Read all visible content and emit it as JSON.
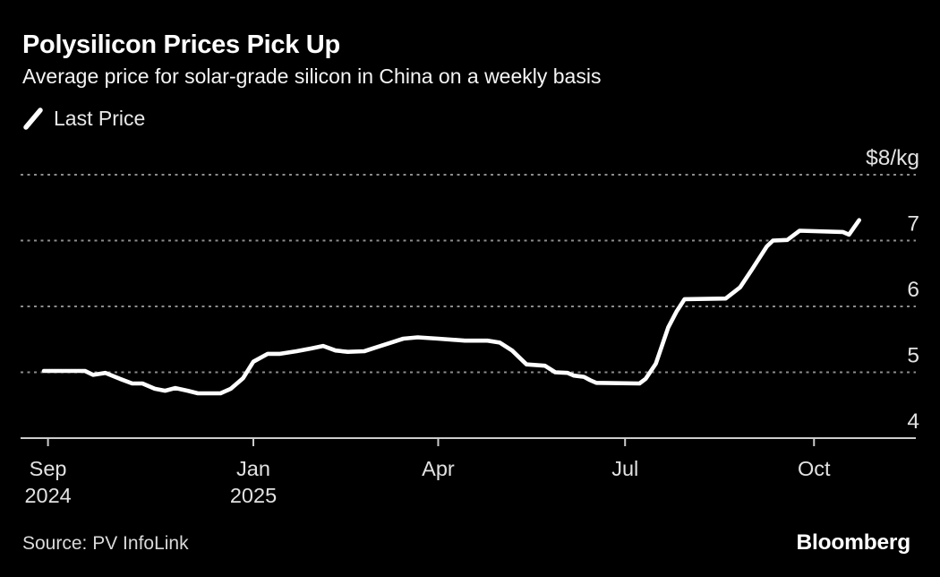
{
  "header": {
    "title": "Polysilicon Prices Pick Up",
    "subtitle": "Average price for solar-grade silicon in China on a weekly basis"
  },
  "legend": {
    "label": "Last Price"
  },
  "footer": {
    "source": "Source: PV InfoLink",
    "brand": "Bloomberg"
  },
  "colors": {
    "background": "#000000",
    "line": "#ffffff",
    "grid_dots": "#8c8c8c",
    "axis": "#cccccc",
    "labels": "#e2e2e2",
    "title": "#ffffff"
  },
  "chart_data": {
    "type": "line",
    "title": "Polysilicon Prices Pick Up",
    "subtitle": "Average price for solar-grade silicon in China on a weekly basis",
    "unit": "$/kg",
    "legend": [
      "Last Price"
    ],
    "legend_position": "top-left",
    "grid": "dotted-horizontal",
    "y_axis": {
      "range": [
        4,
        8
      ],
      "ticks": [
        {
          "value": 8,
          "label": "$8/kg"
        },
        {
          "value": 7,
          "label": "7"
        },
        {
          "value": 6,
          "label": "6"
        },
        {
          "value": 5,
          "label": "5"
        },
        {
          "value": 4,
          "label": "4"
        }
      ]
    },
    "x_axis": {
      "range": [
        "2024-09-15",
        "2025-10-30"
      ],
      "ticks": [
        {
          "date": "2024-09-23",
          "line1": "Sep",
          "line2": "2024"
        },
        {
          "date": "2025-01-01",
          "line1": "Jan",
          "line2": "2025"
        },
        {
          "date": "2025-04-01",
          "line1": "Apr",
          "line2": ""
        },
        {
          "date": "2025-07-01",
          "line1": "Jul",
          "line2": ""
        },
        {
          "date": "2025-10-01",
          "line1": "Oct",
          "line2": ""
        }
      ]
    },
    "series": [
      {
        "name": "Last Price",
        "points": [
          [
            "2024-09-21",
            5.02
          ],
          [
            "2024-10-11",
            5.02
          ],
          [
            "2024-10-15",
            4.96
          ],
          [
            "2024-10-21",
            4.99
          ],
          [
            "2024-10-28",
            4.9
          ],
          [
            "2024-11-03",
            4.83
          ],
          [
            "2024-11-08",
            4.83
          ],
          [
            "2024-11-14",
            4.75
          ],
          [
            "2024-11-19",
            4.72
          ],
          [
            "2024-11-24",
            4.76
          ],
          [
            "2024-11-30",
            4.72
          ],
          [
            "2024-12-05",
            4.68
          ],
          [
            "2024-12-16",
            4.68
          ],
          [
            "2024-12-21",
            4.75
          ],
          [
            "2024-12-27",
            4.91
          ],
          [
            "2025-01-01",
            5.16
          ],
          [
            "2025-01-08",
            5.28
          ],
          [
            "2025-01-14",
            5.28
          ],
          [
            "2025-01-22",
            5.32
          ],
          [
            "2025-01-29",
            5.36
          ],
          [
            "2025-02-04",
            5.4
          ],
          [
            "2025-02-10",
            5.33
          ],
          [
            "2025-02-16",
            5.31
          ],
          [
            "2025-02-24",
            5.32
          ],
          [
            "2025-03-02",
            5.38
          ],
          [
            "2025-03-09",
            5.45
          ],
          [
            "2025-03-15",
            5.51
          ],
          [
            "2025-03-22",
            5.53
          ],
          [
            "2025-04-01",
            5.51
          ],
          [
            "2025-04-14",
            5.48
          ],
          [
            "2025-04-25",
            5.48
          ],
          [
            "2025-05-01",
            5.45
          ],
          [
            "2025-05-07",
            5.33
          ],
          [
            "2025-05-14",
            5.12
          ],
          [
            "2025-05-23",
            5.1
          ],
          [
            "2025-05-28",
            5.0
          ],
          [
            "2025-06-03",
            4.99
          ],
          [
            "2025-06-06",
            4.95
          ],
          [
            "2025-06-11",
            4.93
          ],
          [
            "2025-06-14",
            4.88
          ],
          [
            "2025-06-17",
            4.84
          ],
          [
            "2025-07-08",
            4.83
          ],
          [
            "2025-07-11",
            4.9
          ],
          [
            "2025-07-16",
            5.13
          ],
          [
            "2025-07-22",
            5.68
          ],
          [
            "2025-07-26",
            5.92
          ],
          [
            "2025-07-30",
            6.11
          ],
          [
            "2025-08-19",
            6.12
          ],
          [
            "2025-08-26",
            6.29
          ],
          [
            "2025-09-01",
            6.57
          ],
          [
            "2025-09-08",
            6.91
          ],
          [
            "2025-09-11",
            7.0
          ],
          [
            "2025-09-18",
            7.01
          ],
          [
            "2025-09-24",
            7.15
          ],
          [
            "2025-10-15",
            7.13
          ],
          [
            "2025-10-18",
            7.09
          ],
          [
            "2025-10-23",
            7.31
          ]
        ]
      }
    ]
  }
}
